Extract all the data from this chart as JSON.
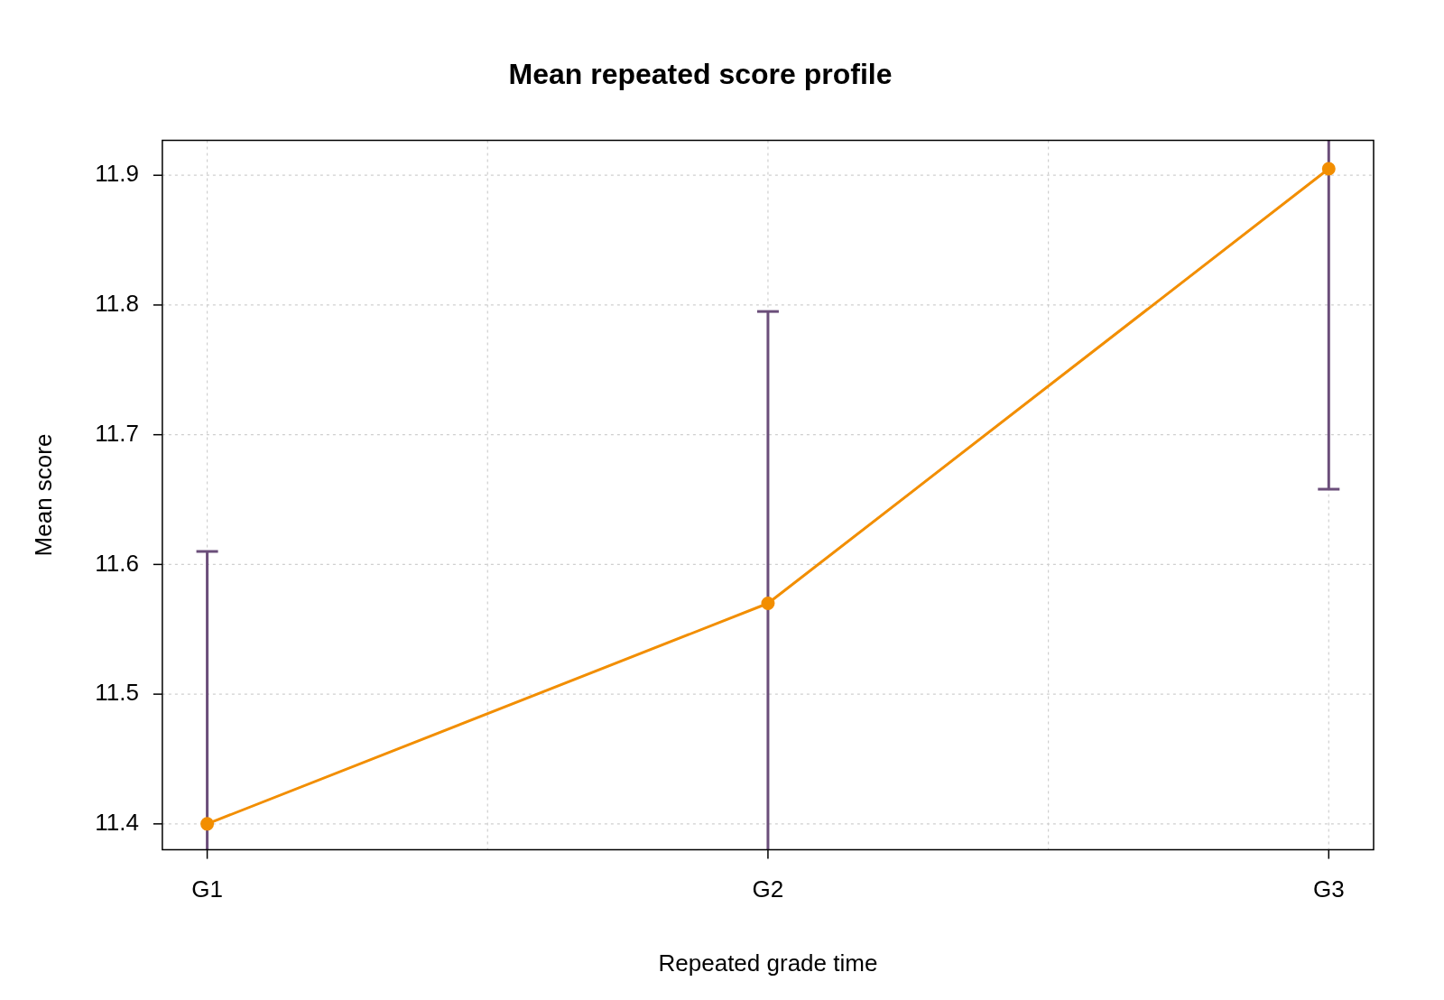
{
  "chart_data": {
    "type": "line",
    "title": "Mean repeated score profile",
    "xlabel": "Repeated grade time",
    "ylabel": "Mean score",
    "categories": [
      "G1",
      "G2",
      "G3"
    ],
    "series": [
      {
        "color": "#f28e00",
        "values": [
          11.4,
          11.57,
          11.905
        ],
        "errors": [
          [
            11.38,
            11.61
          ],
          [
            11.38,
            11.795
          ],
          [
            11.658,
            11.927
          ]
        ]
      }
    ],
    "ylim": [
      11.38,
      11.927
    ],
    "yticks": [
      11.4,
      11.5,
      11.6,
      11.7,
      11.8,
      11.9
    ],
    "grid": true,
    "legend": false,
    "marker": "circle",
    "line_style": "solid"
  }
}
